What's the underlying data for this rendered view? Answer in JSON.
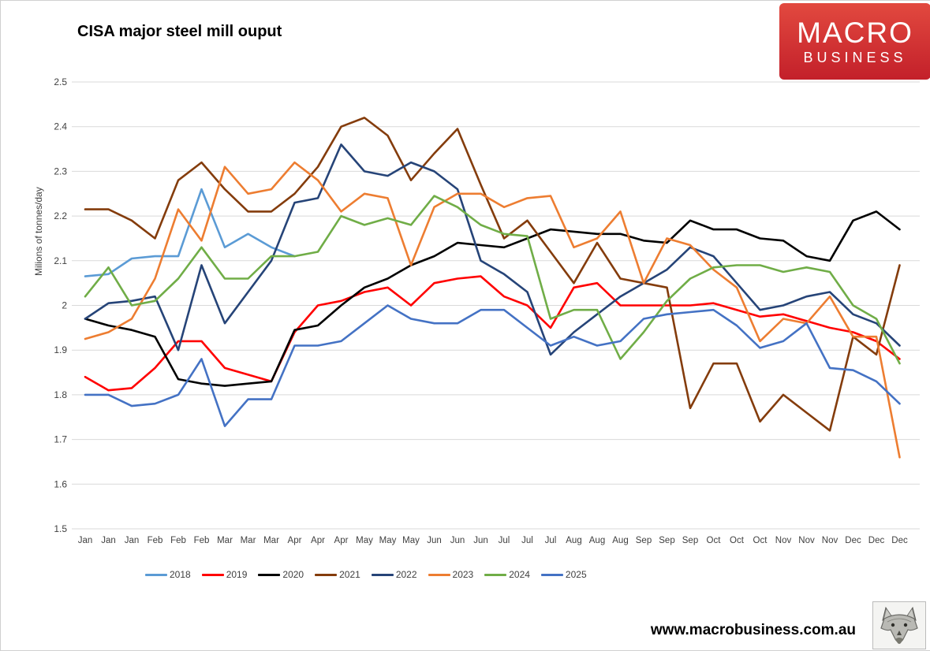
{
  "header": {
    "title": "CISA major steel mill ouput",
    "logo_line1": "MACRO",
    "logo_line2": "BUSINESS",
    "logo_color": "#c9252b"
  },
  "footer": {
    "url": "www.macrobusiness.com.au",
    "wolf_icon": "wolf-head-drawing"
  },
  "chart_data": {
    "type": "line",
    "title": "CISA major steel mill ouput",
    "xlabel": "",
    "ylabel": "Milions of tonnes/day",
    "ylim": [
      1.5,
      2.5
    ],
    "ytick_step": 0.1,
    "grid": "horizontal",
    "legend_position": "bottom",
    "x_labels": [
      "Jan",
      "Jan",
      "Jan",
      "Feb",
      "Feb",
      "Feb",
      "Mar",
      "Mar",
      "Mar",
      "Apr",
      "Apr",
      "Apr",
      "May",
      "May",
      "May",
      "Jun",
      "Jun",
      "Jun",
      "Jul",
      "Jul",
      "Jul",
      "Aug",
      "Aug",
      "Aug",
      "Sep",
      "Sep",
      "Sep",
      "Oct",
      "Oct",
      "Oct",
      "Nov",
      "Nov",
      "Nov",
      "Dec",
      "Dec",
      "Dec"
    ],
    "series": [
      {
        "name": "2018",
        "color": "#5B9BD5",
        "values": [
          2.065,
          2.07,
          2.105,
          2.11,
          2.11,
          2.26,
          2.13,
          2.16,
          2.13,
          2.11,
          null,
          null,
          null,
          null,
          null,
          null,
          null,
          null,
          null,
          null,
          null,
          null,
          null,
          null,
          null,
          null,
          null,
          null,
          null,
          null,
          null,
          null,
          null,
          null,
          null,
          null
        ]
      },
      {
        "name": "2019",
        "color": "#FF0000",
        "values": [
          1.84,
          1.81,
          1.815,
          1.86,
          1.92,
          1.92,
          1.86,
          1.845,
          1.83,
          1.94,
          2.0,
          2.01,
          2.03,
          2.04,
          2.0,
          2.05,
          2.06,
          2.065,
          2.02,
          2.0,
          1.95,
          2.04,
          2.05,
          2.0,
          2.0,
          2.0,
          2.0,
          2.005,
          1.99,
          1.975,
          1.98,
          1.965,
          1.95,
          1.94,
          1.92,
          1.88
        ]
      },
      {
        "name": "2020",
        "color": "#000000",
        "values": [
          1.97,
          1.955,
          1.945,
          1.93,
          1.835,
          1.825,
          1.82,
          1.825,
          1.83,
          1.945,
          1.955,
          2.0,
          2.04,
          2.06,
          2.09,
          2.11,
          2.14,
          2.135,
          2.13,
          2.15,
          2.17,
          2.165,
          2.16,
          2.16,
          2.145,
          2.14,
          2.19,
          2.17,
          2.17,
          2.15,
          2.145,
          2.11,
          2.1,
          2.19,
          2.21,
          2.17
        ]
      },
      {
        "name": "2021",
        "color": "#843C0C",
        "values": [
          2.215,
          2.215,
          2.19,
          2.15,
          2.28,
          2.32,
          2.26,
          2.21,
          2.21,
          2.25,
          2.31,
          2.4,
          2.42,
          2.38,
          2.28,
          2.34,
          2.395,
          2.27,
          2.15,
          2.19,
          2.12,
          2.05,
          2.14,
          2.06,
          2.05,
          2.04,
          1.77,
          1.87,
          1.87,
          1.74,
          1.8,
          1.76,
          1.72,
          1.93,
          1.89,
          2.09
        ]
      },
      {
        "name": "2022",
        "color": "#264478",
        "values": [
          1.97,
          2.005,
          2.01,
          2.02,
          1.9,
          2.09,
          1.96,
          2.03,
          2.1,
          2.23,
          2.24,
          2.36,
          2.3,
          2.29,
          2.32,
          2.3,
          2.26,
          2.1,
          2.07,
          2.03,
          1.89,
          1.94,
          1.98,
          2.02,
          2.05,
          2.08,
          2.13,
          2.11,
          2.05,
          1.99,
          2.0,
          2.02,
          2.03,
          1.98,
          1.96,
          1.91
        ]
      },
      {
        "name": "2023",
        "color": "#ED7D31",
        "values": [
          1.925,
          1.94,
          1.97,
          2.06,
          2.215,
          2.145,
          2.31,
          2.25,
          2.26,
          2.32,
          2.28,
          2.21,
          2.25,
          2.24,
          2.09,
          2.22,
          2.25,
          2.25,
          2.22,
          2.24,
          2.245,
          2.13,
          2.15,
          2.21,
          2.05,
          2.15,
          2.135,
          2.08,
          2.04,
          1.92,
          1.97,
          1.96,
          2.02,
          1.93,
          1.93,
          1.66
        ]
      },
      {
        "name": "2024",
        "color": "#70AD47",
        "values": [
          2.02,
          2.085,
          2.0,
          2.01,
          2.06,
          2.13,
          2.06,
          2.06,
          2.11,
          2.11,
          2.12,
          2.2,
          2.18,
          2.195,
          2.18,
          2.245,
          2.22,
          2.18,
          2.16,
          2.155,
          1.97,
          1.99,
          1.99,
          1.88,
          1.94,
          2.01,
          2.06,
          2.085,
          2.09,
          2.09,
          2.075,
          2.085,
          2.075,
          2.0,
          1.97,
          1.87
        ]
      },
      {
        "name": "2025",
        "color": "#4472C4",
        "values": [
          1.8,
          1.8,
          1.775,
          1.78,
          1.8,
          1.88,
          1.73,
          1.79,
          1.79,
          1.91,
          1.91,
          1.92,
          1.96,
          2.0,
          1.97,
          1.96,
          1.96,
          1.99,
          1.99,
          1.95,
          1.91,
          1.93,
          1.91,
          1.92,
          1.97,
          1.98,
          1.985,
          1.99,
          1.955,
          1.905,
          1.92,
          1.96,
          1.86,
          1.855,
          1.83,
          1.78
        ]
      }
    ]
  },
  "layout_colors": {
    "gridline": "#d9d9d9",
    "tick_text": "#404040"
  }
}
